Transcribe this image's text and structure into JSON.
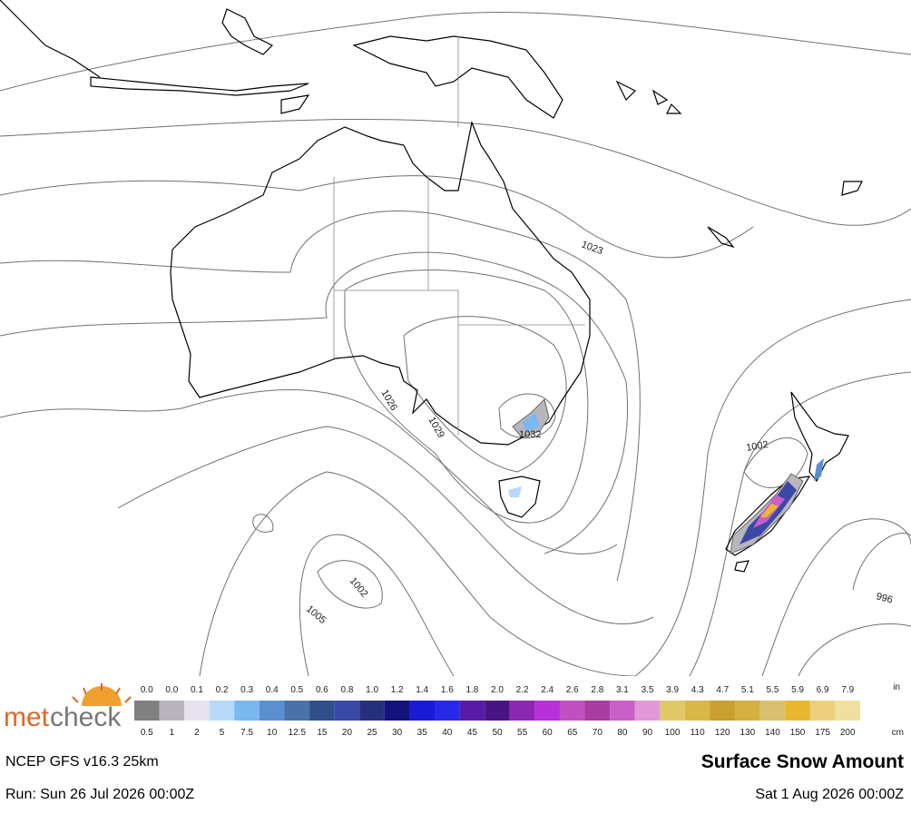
{
  "map": {
    "isobar_labels": [
      "1023",
      "1026",
      "1029",
      "1032",
      "1002",
      "1002",
      "1005",
      "996"
    ]
  },
  "legend": {
    "unit_top": "in",
    "unit_bottom": "cm",
    "top_labels": [
      "0.0",
      "0.0",
      "0.1",
      "0.2",
      "0.3",
      "0.4",
      "0.5",
      "0.6",
      "0.8",
      "1.0",
      "1.2",
      "1.4",
      "1.6",
      "1.8",
      "2.0",
      "2.2",
      "2.4",
      "2.6",
      "2.8",
      "3.1",
      "3.5",
      "3.9",
      "4.3",
      "4.7",
      "5.1",
      "5.5",
      "5.9",
      "6.9",
      "7.9"
    ],
    "bottom_labels": [
      "0.5",
      "1",
      "2",
      "5",
      "7.5",
      "10",
      "12.5",
      "15",
      "20",
      "25",
      "30",
      "35",
      "40",
      "45",
      "50",
      "55",
      "60",
      "65",
      "70",
      "80",
      "90",
      "100",
      "110",
      "120",
      "130",
      "140",
      "150",
      "175",
      "200"
    ],
    "colors": [
      "#808080",
      "#b9b5bd",
      "#e6e2ee",
      "#b7d9f9",
      "#7bb8ef",
      "#5a8fd0",
      "#4a72a8",
      "#2e4f88",
      "#3a48a6",
      "#26307a",
      "#12127a",
      "#1a1ad4",
      "#2828e6",
      "#5a1aa8",
      "#4a1480",
      "#8a28b0",
      "#b830d8",
      "#c050c0",
      "#a83ca0",
      "#c860c8",
      "#e098d8",
      "#e0c868",
      "#d8b848",
      "#c8a030",
      "#d4b040",
      "#d8c070",
      "#e8b830",
      "#ecd080",
      "#f0e0a0"
    ]
  },
  "logo": {
    "part1": "met",
    "part2": "check"
  },
  "footer": {
    "model": "NCEP GFS v16.3 25km",
    "product": "Surface Snow Amount",
    "run": "Run: Sun 26 Jul 2026 00:00Z",
    "valid": "Sat 1 Aug 2026 00:00Z"
  }
}
